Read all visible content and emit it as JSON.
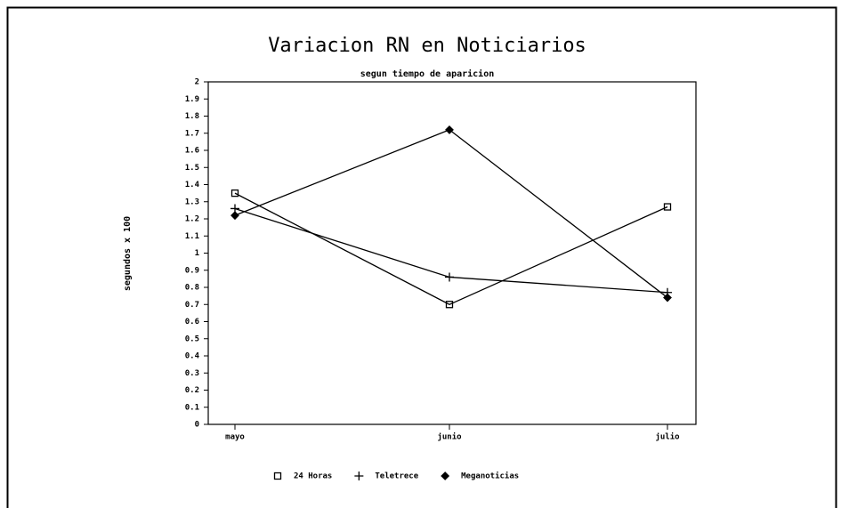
{
  "chart_data": {
    "type": "line",
    "title": "Variacion RN en Noticiarios",
    "subtitle": "segun tiempo de aparicion",
    "y_label": "segundos x 100",
    "categories": [
      "mayo",
      "junio",
      "julio"
    ],
    "series": [
      {
        "name": "24 Horas",
        "color": "#000000",
        "marker": "square",
        "values": [
          1.35,
          0.7,
          1.27
        ]
      },
      {
        "name": "Teletrece",
        "color": "#000000",
        "marker": "plus",
        "values": [
          1.26,
          0.86,
          0.77
        ]
      },
      {
        "name": "Meganoticias",
        "color": "#000000",
        "marker": "diamond",
        "values": [
          1.22,
          1.72,
          0.74
        ]
      }
    ],
    "ylim": [
      0,
      2
    ],
    "yticks": [
      0,
      0.1,
      0.2,
      0.3,
      0.4,
      0.5,
      0.6,
      0.7,
      0.8,
      0.9,
      1,
      1.1,
      1.2,
      1.3,
      1.4,
      1.5,
      1.6,
      1.7,
      1.8,
      1.9,
      2
    ],
    "grid": false,
    "legend": "bottom"
  }
}
